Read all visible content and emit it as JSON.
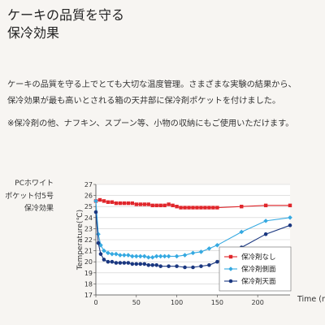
{
  "header": {
    "title_line1": "ケーキの品質を守る",
    "title_line2": "保冷効果"
  },
  "body": {
    "paragraph1_line1": "ケーキの品質を守る上でとても大切な温度管理。さまざまな実験の結果から、",
    "paragraph1_line2": "保冷効果が最も高いとされる箱の天井部に保冷剤ポケットを付けました。",
    "paragraph2": "※保冷剤の他、ナフキン、スプーン等、小物の収納にもご使用いただけます。"
  },
  "side_label": {
    "line1": "PCホワイト",
    "line2": "ポケット付5号",
    "line3": "保冷効果"
  },
  "chart_data": {
    "type": "line",
    "title": "",
    "xlabel": "Time (min)",
    "ylabel": "Temperature(℃)",
    "xlim": [
      0,
      240
    ],
    "ylim": [
      17,
      27
    ],
    "x_ticks": [
      0,
      50,
      100,
      150,
      200
    ],
    "y_ticks": [
      17,
      18,
      19,
      20,
      21,
      22,
      23,
      24,
      25,
      26,
      27
    ],
    "grid": "horizontal",
    "legend_position": "bottom-right",
    "series": [
      {
        "name": "保冷剤なし",
        "color": "#e0262b",
        "marker": "square",
        "x": [
          0,
          5,
          10,
          15,
          20,
          25,
          30,
          35,
          40,
          45,
          50,
          55,
          60,
          65,
          70,
          75,
          80,
          85,
          90,
          95,
          100,
          105,
          110,
          115,
          120,
          125,
          130,
          135,
          140,
          145,
          150,
          180,
          210,
          240
        ],
        "y": [
          25.5,
          25.6,
          25.5,
          25.4,
          25.4,
          25.3,
          25.3,
          25.3,
          25.3,
          25.3,
          25.2,
          25.2,
          25.2,
          25.2,
          25.1,
          25.1,
          25.1,
          25.1,
          25.2,
          25.1,
          25.0,
          24.9,
          24.9,
          24.9,
          24.9,
          24.9,
          24.9,
          24.9,
          24.9,
          24.9,
          24.9,
          25.0,
          25.1,
          25.1
        ]
      },
      {
        "name": "保冷剤側面",
        "color": "#35a9e1",
        "marker": "diamond",
        "x": [
          0,
          3,
          6,
          10,
          15,
          20,
          25,
          30,
          35,
          40,
          45,
          50,
          55,
          60,
          65,
          70,
          75,
          80,
          85,
          90,
          100,
          110,
          120,
          130,
          140,
          150,
          180,
          210,
          240
        ],
        "y": [
          25.5,
          22.5,
          21.5,
          21.0,
          20.8,
          20.7,
          20.7,
          20.6,
          20.6,
          20.6,
          20.5,
          20.5,
          20.5,
          20.5,
          20.4,
          20.4,
          20.5,
          20.5,
          20.5,
          20.5,
          20.5,
          20.6,
          20.8,
          20.9,
          21.2,
          21.5,
          22.7,
          23.7,
          24.0
        ]
      },
      {
        "name": "保冷剤天面",
        "color": "#1a3780",
        "marker": "circle",
        "x": [
          0,
          3,
          6,
          10,
          15,
          20,
          25,
          30,
          35,
          40,
          45,
          50,
          55,
          60,
          65,
          70,
          75,
          80,
          90,
          100,
          110,
          120,
          130,
          140,
          150,
          180,
          210,
          240
        ],
        "y": [
          24.5,
          21.7,
          20.7,
          20.2,
          20.0,
          20.0,
          19.9,
          19.9,
          19.9,
          19.9,
          19.8,
          19.8,
          19.8,
          19.8,
          19.7,
          19.7,
          19.7,
          19.6,
          19.6,
          19.6,
          19.5,
          19.5,
          19.6,
          19.7,
          20.0,
          21.3,
          22.5,
          23.3
        ]
      }
    ]
  }
}
